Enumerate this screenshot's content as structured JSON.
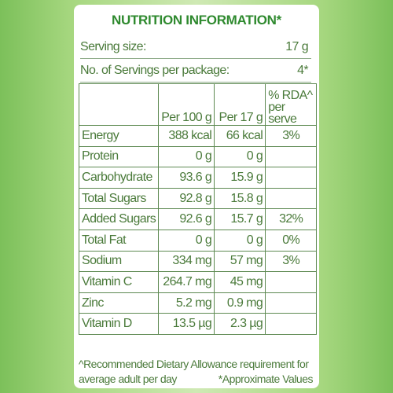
{
  "title": "NUTRITION INFORMATION*",
  "serving": [
    {
      "label": "Serving size:",
      "value": "17 g"
    },
    {
      "label": "No. of Servings per package:",
      "value": "4*"
    }
  ],
  "table": {
    "header": [
      "Per 100 g",
      "Per 17 g",
      "% RDA^ per serve"
    ],
    "rows": [
      [
        "Energy",
        "388 kcal",
        "66 kcal",
        "3%"
      ],
      [
        "Protein",
        "0 g",
        "0 g"
      ],
      [
        "Carbohydrate",
        "93.6 g",
        "15.9 g"
      ],
      [
        "Total Sugars",
        "92.8 g",
        "15.8 g"
      ],
      [
        "Added Sugars",
        "92.6 g",
        "15.7 g",
        "32%"
      ],
      [
        "Total Fat",
        "0 g",
        "0 g",
        "0%"
      ],
      [
        "Sodium",
        "334 mg",
        "57 mg",
        "3%"
      ],
      [
        "Vitamin C",
        "264.7 mg",
        "45 mg"
      ],
      [
        "Zinc",
        "5.2 mg",
        "0.9 mg"
      ],
      [
        "Vitamin D",
        "13.5 µg",
        "2.3 µg"
      ]
    ]
  },
  "footnotes": [
    "^Recommended Dietary Allowance requirement for average adult per day",
    "*Approximate Values"
  ]
}
